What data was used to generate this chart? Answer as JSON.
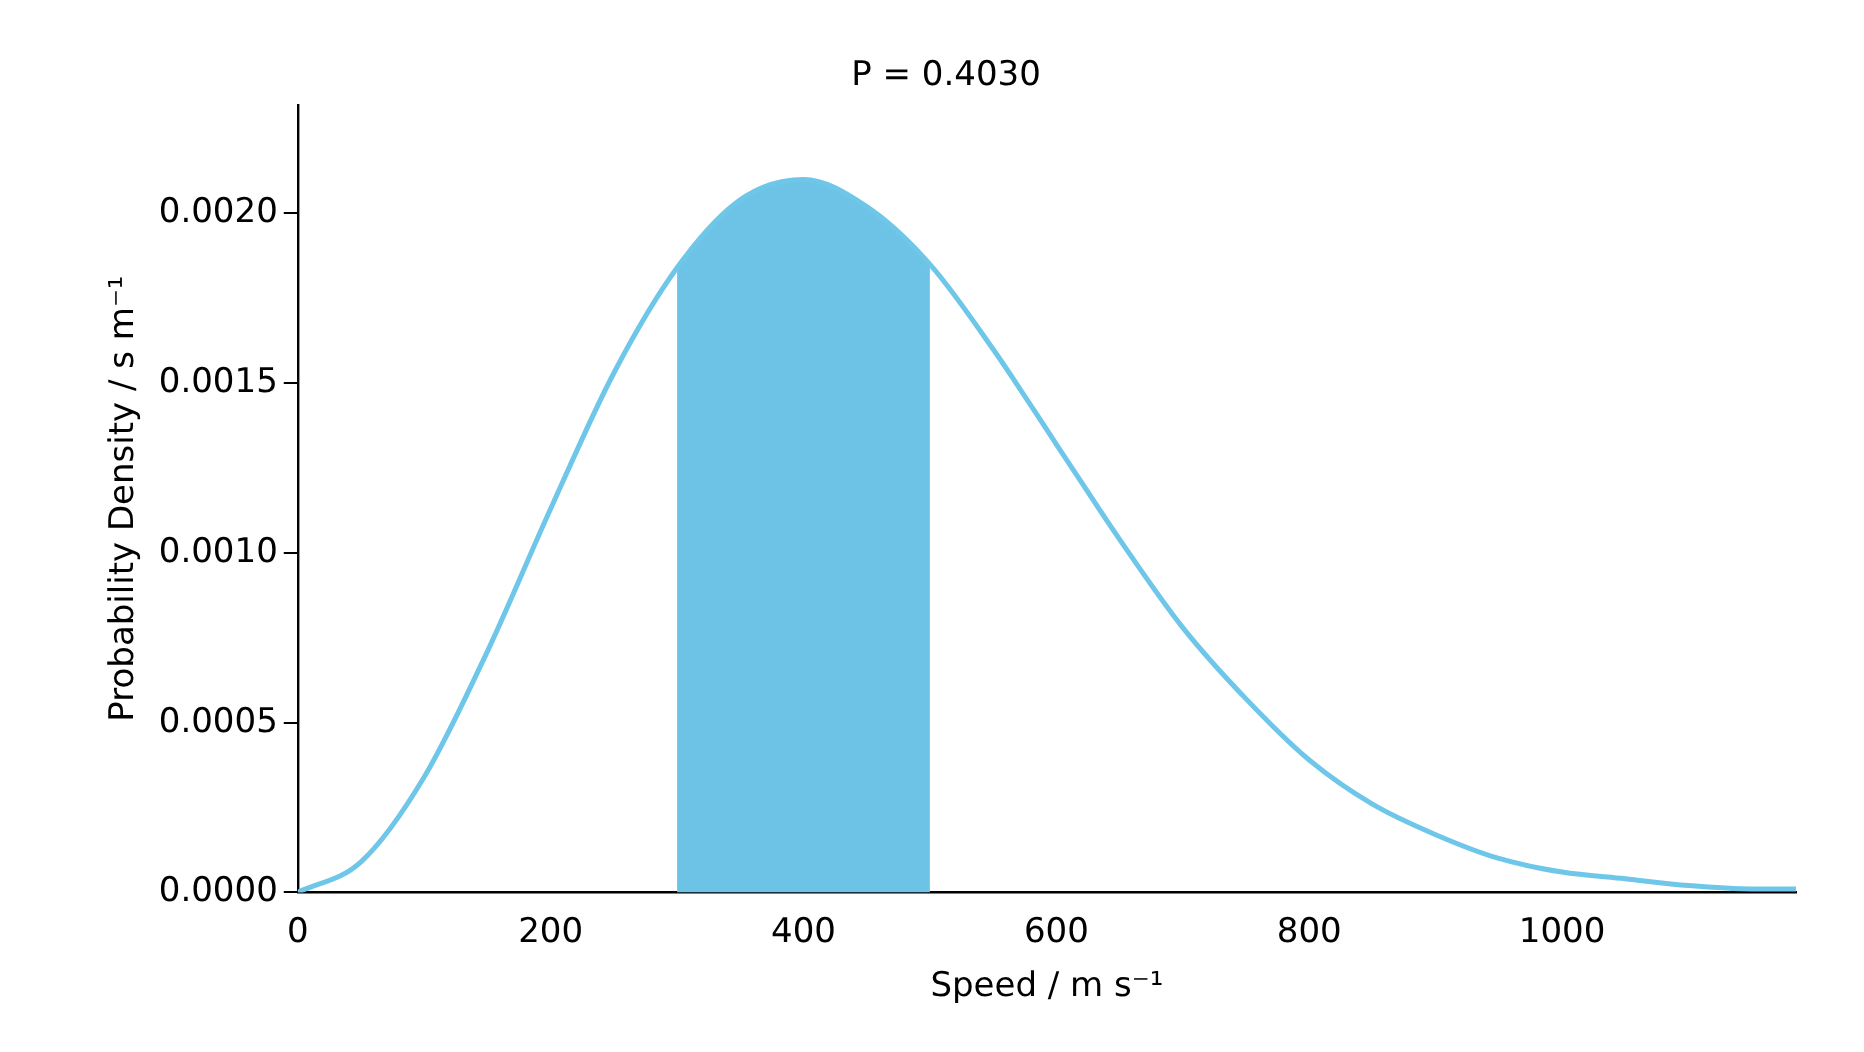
{
  "chart_data": {
    "type": "line",
    "title": "P = 0.4030",
    "xlabel": "Speed / m s⁻¹",
    "ylabel": "Probability Density / s m⁻¹",
    "xlim": [
      0,
      1185
    ],
    "xticks": [
      0,
      200,
      400,
      600,
      800,
      1000
    ],
    "ylim": [
      0,
      0.00232
    ],
    "yticks": [
      {
        "value": 0,
        "label": "0.0000"
      },
      {
        "value": 0.0005,
        "label": "0.0005"
      },
      {
        "value": 0.001,
        "label": "0.0010"
      },
      {
        "value": 0.0015,
        "label": "0.0015"
      },
      {
        "value": 0.002,
        "label": "0.0020"
      }
    ],
    "grid": false,
    "legend": false,
    "marker": "none",
    "line_style": "solid",
    "series": [
      {
        "color": "#6ec6e8",
        "x": [
          0,
          50,
          100,
          150,
          200,
          250,
          300,
          350,
          400,
          450,
          500,
          550,
          600,
          650,
          700,
          750,
          800,
          850,
          900,
          950,
          1000,
          1050,
          1100,
          1150,
          1185
        ],
        "values": [
          0,
          9e-05,
          0.00034,
          0.00071,
          0.00113,
          0.00153,
          0.00184,
          0.00204,
          0.0021,
          0.00202,
          0.00185,
          0.0016,
          0.00132,
          0.00104,
          0.00078,
          0.00057,
          0.00039,
          0.00026,
          0.00017,
          0.0001,
          6e-05,
          4e-05,
          2e-05,
          1e-05,
          1e-05
        ]
      },
      {
        "type": "area",
        "color": "#6cc3e5",
        "x": [
          300,
          325,
          350,
          375,
          400,
          425,
          450,
          475,
          500
        ],
        "values": [
          0.00184,
          0.00196,
          0.00204,
          0.00209,
          0.0021,
          0.00207,
          0.00202,
          0.00194,
          0.00185
        ]
      }
    ]
  }
}
